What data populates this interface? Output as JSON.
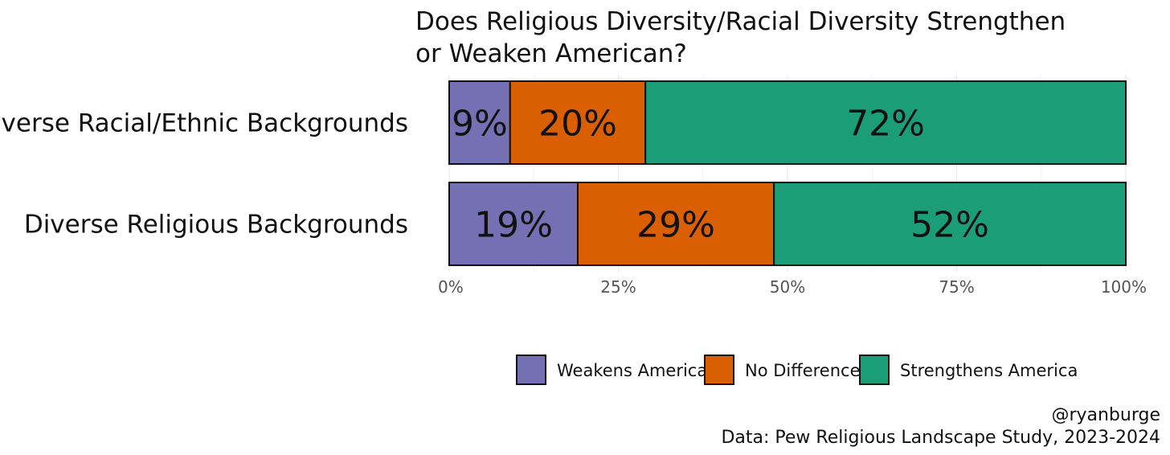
{
  "chart_data": {
    "type": "bar",
    "orientation": "horizontal",
    "stacked": true,
    "title_lines": [
      "Does Religious Diversity/Racial Diversity Strengthen",
      "or Weaken American?"
    ],
    "categories": [
      "Diverse Racial/Ethnic Backgrounds",
      "Diverse Religious Backgrounds"
    ],
    "series": [
      {
        "name": "Weakens America",
        "color": "#7570b3",
        "values": [
          9,
          19
        ],
        "labels": [
          "9%",
          "19%"
        ]
      },
      {
        "name": "No Difference",
        "color": "#d95f02",
        "values": [
          20,
          29
        ],
        "labels": [
          "20%",
          "29%"
        ]
      },
      {
        "name": "Strengthens America",
        "color": "#1b9e77",
        "values": [
          72,
          52
        ],
        "labels": [
          "72%",
          "52%"
        ]
      }
    ],
    "x_ticks": [
      {
        "value": 0,
        "label": "0%"
      },
      {
        "value": 25,
        "label": "25%"
      },
      {
        "value": 50,
        "label": "50%"
      },
      {
        "value": 75,
        "label": "75%"
      },
      {
        "value": 100,
        "label": "100%"
      }
    ],
    "xlim": [
      0,
      100
    ],
    "grid": true,
    "legend_position": "bottom-right"
  },
  "credit": "@ryanburge",
  "source": "Data: Pew Religious Landscape Study, 2023-2024"
}
